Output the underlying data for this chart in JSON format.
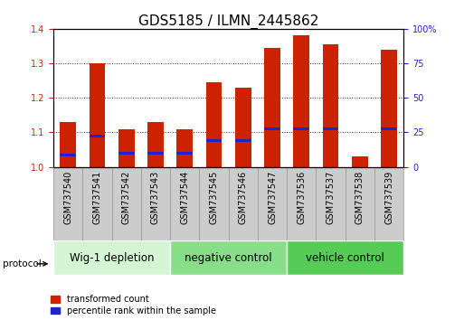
{
  "title": "GDS5185 / ILMN_2445862",
  "samples": [
    "GSM737540",
    "GSM737541",
    "GSM737542",
    "GSM737543",
    "GSM737544",
    "GSM737545",
    "GSM737546",
    "GSM737547",
    "GSM737536",
    "GSM737537",
    "GSM737538",
    "GSM737539"
  ],
  "red_values": [
    1.13,
    1.3,
    1.11,
    1.13,
    1.11,
    1.245,
    1.23,
    1.345,
    1.38,
    1.355,
    1.03,
    1.34
  ],
  "blue_values": [
    1.035,
    1.09,
    1.04,
    1.04,
    1.04,
    1.075,
    1.075,
    1.11,
    1.11,
    1.11,
    1.03,
    1.11
  ],
  "ylim_left": [
    1.0,
    1.4
  ],
  "ylim_right": [
    0,
    100
  ],
  "yticks_left": [
    1.0,
    1.1,
    1.2,
    1.3,
    1.4
  ],
  "yticks_right": [
    0,
    25,
    50,
    75,
    100
  ],
  "ytick_labels_right": [
    "0",
    "25",
    "50",
    "75",
    "100%"
  ],
  "bar_width": 0.55,
  "red_color": "#cc2200",
  "blue_color": "#2222cc",
  "groups": [
    {
      "label": "Wig-1 depletion",
      "indices": [
        0,
        1,
        2,
        3
      ],
      "color": "#d4f5d4"
    },
    {
      "label": "negative control",
      "indices": [
        4,
        5,
        6,
        7
      ],
      "color": "#88dd88"
    },
    {
      "label": "vehicle control",
      "indices": [
        8,
        9,
        10,
        11
      ],
      "color": "#55cc55"
    }
  ],
  "protocol_label": "protocol",
  "legend_red": "transformed count",
  "legend_blue": "percentile rank within the sample",
  "title_fontsize": 11,
  "tick_fontsize": 7,
  "group_fontsize": 8.5,
  "left_tick_color": "#cc2200",
  "right_tick_color": "#2222cc",
  "bg_plot": "#ffffff",
  "xtick_bg": "#cccccc",
  "xtick_border": "#999999"
}
